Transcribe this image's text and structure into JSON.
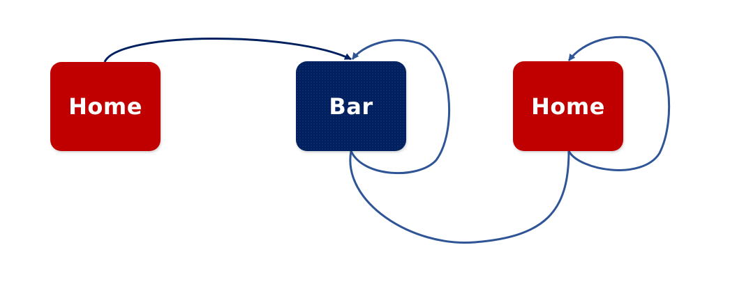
{
  "nodes": [
    {
      "id": "home-left",
      "label": "Home",
      "color": "#c00000"
    },
    {
      "id": "bar",
      "label": "Bar",
      "color": "#002060"
    },
    {
      "id": "home-right",
      "label": "Home",
      "color": "#c00000"
    }
  ],
  "edges": [
    {
      "from": "home-left",
      "to": "bar",
      "color": "#002060"
    },
    {
      "from": "bar",
      "to": "bar",
      "color": "#2f5597"
    },
    {
      "from": "bar",
      "to": "home-right",
      "color": "#2f5597"
    },
    {
      "from": "home-right",
      "to": "home-right",
      "color": "#2f5597"
    }
  ]
}
